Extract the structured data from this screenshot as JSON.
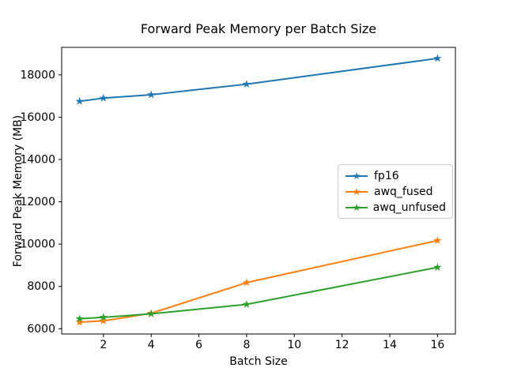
{
  "chart_data": {
    "type": "line",
    "title": "Forward Peak Memory per Batch Size",
    "xlabel": "Batch Size",
    "ylabel": "Forward Peak Memory (MB)",
    "x": [
      1,
      2,
      4,
      8,
      16
    ],
    "series": [
      {
        "name": "fp16",
        "color": "#1f77b4",
        "marker": "star",
        "values": [
          16750,
          16900,
          17060,
          17560,
          18780
        ]
      },
      {
        "name": "awq_fused",
        "color": "#ff7f0e",
        "marker": "star",
        "values": [
          6310,
          6370,
          6730,
          8180,
          10170
        ]
      },
      {
        "name": "awq_unfused",
        "color": "#2ca02c",
        "marker": "star",
        "values": [
          6470,
          6540,
          6700,
          7150,
          8900
        ]
      }
    ],
    "xticks": [
      2,
      4,
      6,
      8,
      10,
      12,
      14,
      16
    ],
    "yticks": [
      6000,
      8000,
      10000,
      12000,
      14000,
      16000,
      18000
    ],
    "xlim": [
      0.25,
      16.75
    ],
    "ylim": [
      5750,
      19300
    ],
    "grid": false,
    "legend_position": "center right",
    "axis_color": "#000000",
    "background_color": "#ffffff"
  }
}
